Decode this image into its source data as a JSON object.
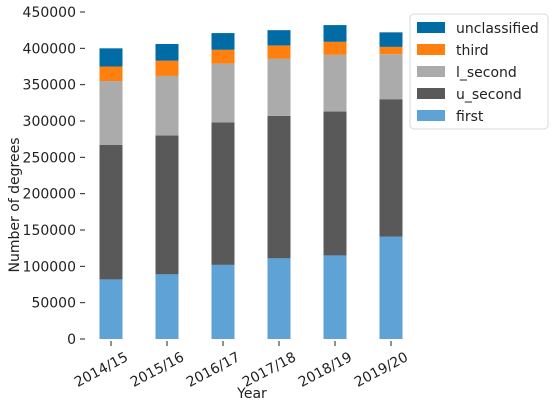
{
  "chart_data": {
    "type": "bar",
    "stacked": true,
    "title": "",
    "xlabel": "Year",
    "ylabel": "Number of degrees",
    "ylim": [
      0,
      450000
    ],
    "yticks": [
      0,
      50000,
      100000,
      150000,
      200000,
      250000,
      300000,
      350000,
      400000,
      450000
    ],
    "grid": false,
    "legend_position": "upper-right-outside",
    "categories": [
      "2014/15",
      "2015/16",
      "2016/17",
      "2017/18",
      "2018/19",
      "2019/20"
    ],
    "series": [
      {
        "name": "first",
        "color": "#5fa2d6",
        "values": [
          82000,
          89000,
          102000,
          111000,
          115000,
          141000
        ]
      },
      {
        "name": "u_second",
        "color": "#595959",
        "values": [
          185000,
          191000,
          196000,
          196000,
          198000,
          189000
        ]
      },
      {
        "name": "l_second",
        "color": "#ababab",
        "values": [
          88000,
          82000,
          81000,
          79000,
          78000,
          62000
        ]
      },
      {
        "name": "third",
        "color": "#ff800e",
        "values": [
          20000,
          21000,
          19000,
          18000,
          18000,
          10000
        ]
      },
      {
        "name": "unclassified",
        "color": "#006ba4",
        "values": [
          25000,
          23000,
          23000,
          21000,
          23000,
          20000
        ]
      }
    ],
    "legend_order": [
      "unclassified",
      "third",
      "l_second",
      "u_second",
      "first"
    ]
  }
}
